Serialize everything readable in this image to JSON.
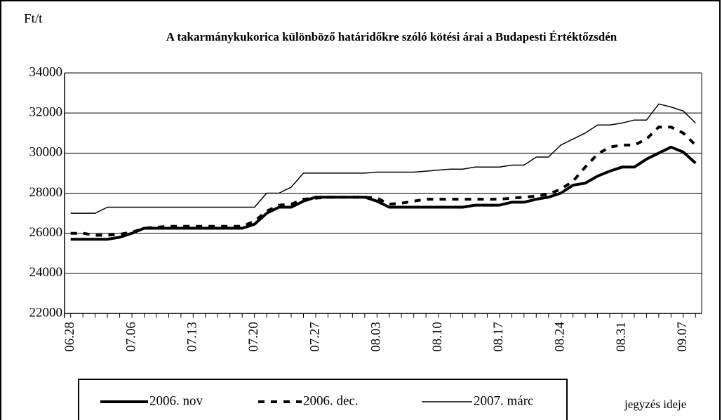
{
  "chart_data": {
    "type": "line",
    "title": "A takarmánykukorica különböző határidőkre szóló kötési árai a Budapesti Értéktőzsdén",
    "y_label": "Ft/t",
    "x_label": "jegyzés ideje",
    "categories": [
      "06.28",
      null,
      null,
      null,
      null,
      "07.06",
      null,
      null,
      null,
      null,
      "07.13",
      null,
      null,
      null,
      null,
      "07.20",
      null,
      null,
      null,
      null,
      "07.27",
      null,
      null,
      null,
      null,
      "08.03",
      null,
      null,
      null,
      null,
      "08.10",
      null,
      null,
      null,
      null,
      "08.17",
      null,
      null,
      null,
      null,
      "08.24",
      null,
      null,
      null,
      null,
      "08.31",
      null,
      null,
      null,
      null,
      "09.07",
      null
    ],
    "series": [
      {
        "name": "2006. nov",
        "color": "#000000",
        "values": [
          25700,
          25700,
          25700,
          25700,
          25800,
          26000,
          26250,
          26250,
          26250,
          26250,
          26250,
          26250,
          26250,
          26250,
          26250,
          26450,
          27000,
          27300,
          27300,
          27600,
          27800,
          27800,
          27800,
          27800,
          27800,
          27600,
          27300,
          27300,
          27300,
          27300,
          27300,
          27300,
          27300,
          27400,
          27400,
          27400,
          27550,
          27550,
          27700,
          27800,
          28000,
          28400,
          28500,
          28850,
          29100,
          29300,
          29300,
          29700,
          30000,
          30300,
          30050,
          29500
        ]
      },
      {
        "name": "2006. dec.",
        "color": "#000000",
        "values": [
          26000,
          26000,
          25900,
          25900,
          25950,
          26050,
          26250,
          26300,
          26350,
          26350,
          26350,
          26350,
          26350,
          26350,
          26350,
          26600,
          27100,
          27400,
          27450,
          27700,
          27750,
          27800,
          27800,
          27800,
          27800,
          27750,
          27450,
          27500,
          27600,
          27700,
          27700,
          27700,
          27700,
          27700,
          27700,
          27700,
          27750,
          27800,
          27850,
          27950,
          28200,
          28600,
          29300,
          29950,
          30300,
          30400,
          30400,
          30700,
          31300,
          31300,
          31000,
          30400
        ]
      },
      {
        "name": "2007. márc",
        "color": "#000000",
        "values": [
          27000,
          27000,
          27000,
          27300,
          27300,
          27300,
          27300,
          27300,
          27300,
          27300,
          27300,
          27300,
          27300,
          27300,
          27300,
          27300,
          28000,
          28000,
          28300,
          29000,
          29000,
          29000,
          29000,
          29000,
          29000,
          29050,
          29050,
          29050,
          29050,
          29100,
          29150,
          29200,
          29200,
          29300,
          29300,
          29300,
          29400,
          29400,
          29800,
          29800,
          30400,
          30700,
          31000,
          31400,
          31400,
          31500,
          31650,
          31650,
          32450,
          32300,
          32100,
          31500
        ]
      }
    ],
    "ylim": [
      22000,
      34000
    ],
    "yticks": [
      22000,
      24000,
      26000,
      28000,
      30000,
      32000,
      34000
    ],
    "grid": true
  }
}
